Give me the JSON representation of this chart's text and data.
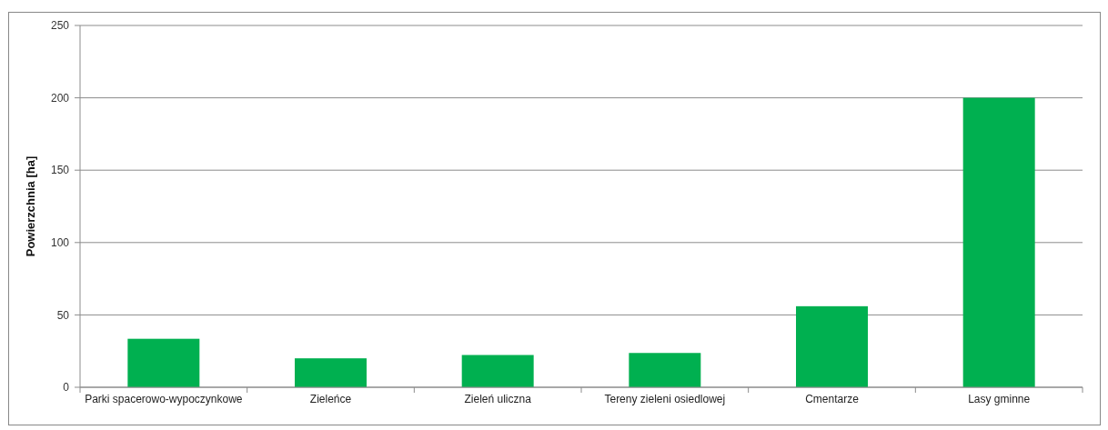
{
  "chart_data": {
    "type": "bar",
    "ylabel": "Powierzchnia [ha]",
    "categories": [
      "Parki spacerowo-wypoczynkowe",
      "Zieleńce",
      "Zieleń uliczna",
      "Tereny zieleni osiedlowej",
      "Cmentarze",
      "Lasy gminne"
    ],
    "values": [
      33.5,
      20,
      22.3,
      23.7,
      56,
      200
    ],
    "color": "#00b050",
    "ylim": [
      0,
      250
    ],
    "yticks": [
      0,
      50,
      100,
      150,
      200,
      250
    ],
    "grid": "y"
  }
}
